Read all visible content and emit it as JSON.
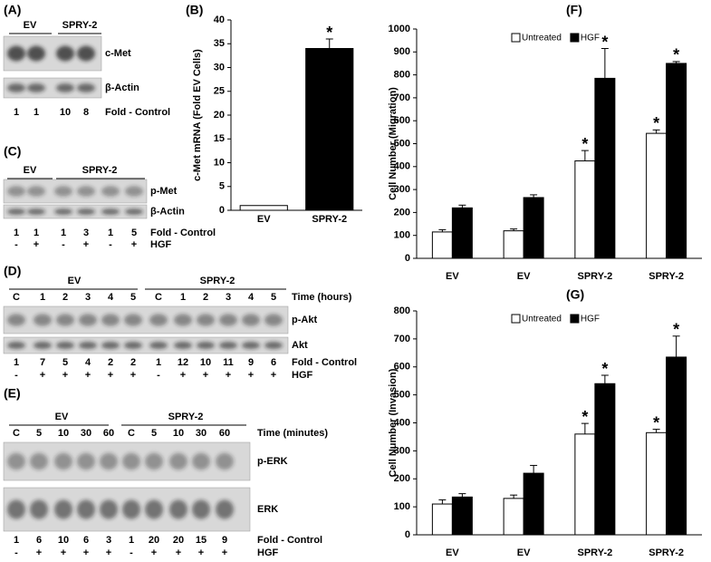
{
  "blots": [
    {
      "label": "(A)",
      "groups": [
        "EV",
        "SPRY-2"
      ],
      "rows": [
        "c-Met",
        "β-Actin"
      ],
      "fold": [
        1,
        1,
        10,
        8
      ],
      "fold_title": "Fold - Control"
    },
    {
      "label": "(C)",
      "groups": [
        "EV",
        "SPRY-2"
      ],
      "rows": [
        "p-Met",
        "β-Actin"
      ],
      "fold": [
        1,
        1,
        1,
        3,
        1,
        5
      ],
      "fold_title": "Fold - Control",
      "hgf": [
        "-",
        "+",
        "-",
        "+",
        "-",
        "+"
      ],
      "hgf_title": "HGF"
    },
    {
      "label": "(D)",
      "groups": [
        "EV",
        "SPRY-2"
      ],
      "lanes": [
        "C",
        "1",
        "2",
        "3",
        "4",
        "5",
        "C",
        "1",
        "2",
        "3",
        "4",
        "5"
      ],
      "lanes_title": "Time (hours)",
      "rows": [
        "p-Akt",
        "Akt"
      ],
      "fold": [
        1,
        7,
        5,
        4,
        2,
        2,
        1,
        12,
        10,
        11,
        9,
        6
      ],
      "fold_title": "Fold - Control",
      "hgf": [
        "-",
        "+",
        "+",
        "+",
        "+",
        "+",
        "-",
        "+",
        "+",
        "+",
        "+",
        "+"
      ],
      "hgf_title": "HGF"
    },
    {
      "label": "(E)",
      "groups": [
        "EV",
        "SPRY-2"
      ],
      "lanes": [
        "C",
        "5",
        "10",
        "30",
        "60",
        "C",
        "5",
        "10",
        "30",
        "60"
      ],
      "lanes_title": "Time (minutes)",
      "rows": [
        "p-ERK",
        "ERK"
      ],
      "fold": [
        1,
        6,
        10,
        6,
        3,
        1,
        20,
        20,
        15,
        9
      ],
      "fold_title": "Fold - Control",
      "hgf": [
        "-",
        "+",
        "+",
        "+",
        "+",
        "-",
        "+",
        "+",
        "+",
        "+"
      ],
      "hgf_title": "HGF"
    }
  ],
  "chart_data": [
    {
      "type": "bar",
      "label": "(B)",
      "ylabel": "c-Met mRNA (Fold EV Cells)",
      "categories": [
        "EV",
        "SPRY-2"
      ],
      "values": [
        1,
        34
      ],
      "errors": [
        null,
        2
      ],
      "significance": [
        null,
        "*"
      ],
      "colors": [
        "#ffffff",
        "#000000"
      ],
      "ylim": [
        0,
        40
      ],
      "yticks": [
        0,
        5,
        10,
        15,
        20,
        25,
        30,
        35,
        40
      ]
    },
    {
      "type": "grouped_bar",
      "label": "(F)",
      "ylabel": "Cell Number (Migration)",
      "categories": [
        "EV",
        "EV",
        "SPRY-2",
        "SPRY-2"
      ],
      "series": [
        {
          "name": "Untreated",
          "color": "#ffffff",
          "values": [
            115,
            120,
            425,
            545
          ],
          "errors": [
            10,
            8,
            45,
            15
          ],
          "significance": [
            null,
            null,
            "*",
            "*"
          ]
        },
        {
          "name": "HGF",
          "color": "#000000",
          "values": [
            220,
            265,
            785,
            850
          ],
          "errors": [
            12,
            12,
            130,
            8
          ],
          "significance": [
            null,
            null,
            "*",
            "*"
          ]
        }
      ],
      "ylim": [
        0,
        1000
      ],
      "yticks": [
        0,
        100,
        200,
        300,
        400,
        500,
        600,
        700,
        800,
        900,
        1000
      ],
      "legend": "top"
    },
    {
      "type": "grouped_bar",
      "label": "(G)",
      "ylabel": "Cell Number (Invasion)",
      "categories": [
        "EV",
        "EV",
        "SPRY-2",
        "SPRY-2"
      ],
      "series": [
        {
          "name": "Untreated",
          "color": "#ffffff",
          "values": [
            110,
            130,
            360,
            365
          ],
          "errors": [
            15,
            12,
            38,
            12
          ],
          "significance": [
            null,
            null,
            "*",
            "*"
          ]
        },
        {
          "name": "HGF",
          "color": "#000000",
          "values": [
            135,
            220,
            540,
            635
          ],
          "errors": [
            12,
            28,
            30,
            75
          ],
          "significance": [
            null,
            null,
            "*",
            "*"
          ]
        }
      ],
      "ylim": [
        0,
        800
      ],
      "yticks": [
        0,
        100,
        200,
        300,
        400,
        500,
        600,
        700,
        800
      ],
      "legend": "top"
    }
  ]
}
